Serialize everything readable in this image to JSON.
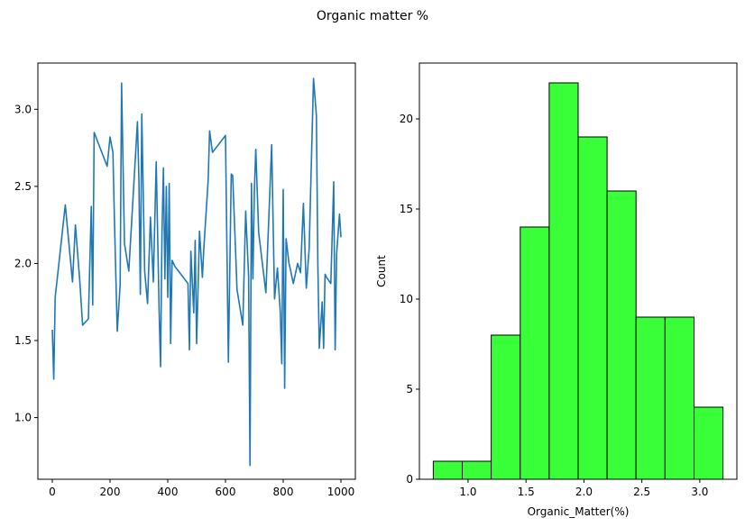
{
  "figure": {
    "suptitle": "Organic matter %"
  },
  "colors": {
    "line": "#1f77b4",
    "bars": "#39ff39",
    "edge": "#000000"
  },
  "chart_data": [
    {
      "type": "line",
      "xlabel": "",
      "ylabel": "",
      "xlim": [
        -50,
        1050
      ],
      "ylim": [
        0.6,
        3.3
      ],
      "xticks": [
        0,
        200,
        400,
        600,
        800,
        1000
      ],
      "yticks": [
        1.0,
        1.5,
        2.0,
        2.5,
        3.0
      ],
      "x": [
        0,
        5,
        10,
        45,
        70,
        80,
        95,
        105,
        125,
        135,
        140,
        145,
        190,
        200,
        210,
        215,
        225,
        235,
        240,
        250,
        265,
        295,
        300,
        305,
        310,
        320,
        330,
        340,
        350,
        360,
        370,
        375,
        380,
        385,
        390,
        395,
        400,
        405,
        410,
        415,
        425,
        470,
        475,
        480,
        490,
        495,
        500,
        510,
        520,
        525,
        540,
        545,
        555,
        600,
        610,
        620,
        625,
        640,
        660,
        670,
        680,
        685,
        690,
        695,
        700,
        705,
        715,
        740,
        760,
        770,
        780,
        790,
        795,
        800,
        805,
        810,
        820,
        825,
        835,
        850,
        860,
        870,
        880,
        890,
        895,
        905,
        915,
        920,
        925,
        935,
        940,
        945,
        950,
        965,
        975,
        980,
        985,
        995,
        1000
      ],
      "y": [
        1.57,
        1.25,
        1.78,
        2.38,
        1.88,
        2.25,
        1.89,
        1.6,
        1.64,
        2.37,
        1.73,
        2.85,
        2.63,
        2.82,
        2.72,
        2.3,
        1.56,
        1.86,
        3.17,
        2.13,
        1.95,
        2.92,
        2.55,
        1.8,
        2.97,
        1.95,
        1.74,
        2.3,
        1.88,
        2.66,
        1.7,
        1.33,
        2.2,
        2.62,
        1.9,
        2.5,
        1.78,
        2.52,
        1.48,
        2.02,
        1.98,
        1.87,
        1.44,
        2.08,
        1.68,
        2.15,
        1.48,
        2.21,
        1.91,
        2.1,
        2.54,
        2.86,
        2.72,
        2.83,
        1.36,
        2.58,
        2.57,
        1.83,
        1.6,
        2.34,
        1.92,
        0.69,
        2.52,
        1.9,
        2.47,
        2.74,
        2.2,
        1.81,
        2.77,
        1.77,
        1.97,
        1.68,
        1.35,
        2.48,
        1.19,
        2.16,
        2.0,
        1.96,
        1.87,
        2.0,
        1.94,
        2.39,
        1.84,
        2.1,
        2.47,
        3.2,
        2.96,
        2.0,
        1.45,
        1.75,
        1.45,
        1.93,
        1.91,
        1.87,
        2.53,
        1.44,
        2.06,
        2.32,
        2.17
      ]
    },
    {
      "type": "bar",
      "subtype": "histogram",
      "xlabel": "Organic_Matter(%)",
      "ylabel": "Count",
      "xlim": [
        0.58,
        3.32
      ],
      "ylim": [
        0,
        23.1
      ],
      "xticks": [
        1.0,
        1.5,
        2.0,
        2.5,
        3.0
      ],
      "yticks": [
        0,
        5,
        10,
        15,
        20
      ],
      "bin_edges": [
        0.7,
        0.95,
        1.2,
        1.45,
        1.7,
        1.95,
        2.2,
        2.45,
        2.7,
        2.95,
        3.2
      ],
      "values": [
        1,
        1,
        8,
        14,
        22,
        19,
        16,
        9,
        9,
        4
      ]
    }
  ]
}
